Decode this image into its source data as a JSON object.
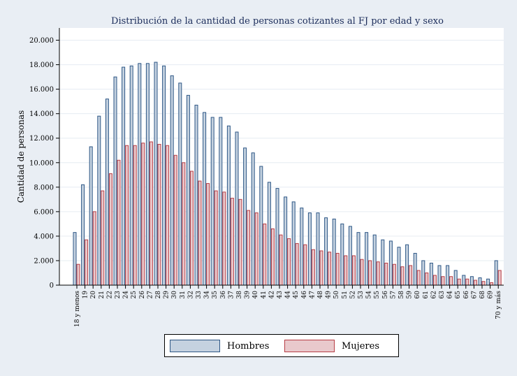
{
  "chart_data": {
    "type": "bar",
    "title": "Distribución de la cantidad de personas cotizantes al FJ por edad y sexo",
    "ylabel": "Cantidad de personas",
    "xlabel": "",
    "ylim": [
      0,
      21000
    ],
    "yticks": [
      "0",
      "2.000",
      "4.000",
      "6.000",
      "8.000",
      "10.000",
      "12.000",
      "14.000",
      "16.000",
      "18.000",
      "20.000"
    ],
    "ytick_values": [
      0,
      2000,
      4000,
      6000,
      8000,
      10000,
      12000,
      14000,
      16000,
      18000,
      20000
    ],
    "grid": true,
    "legend_position": "bottom",
    "categories": [
      "18 y menos",
      "19",
      "20",
      "21",
      "22",
      "23",
      "24",
      "25",
      "26",
      "27",
      "28",
      "29",
      "30",
      "31",
      "32",
      "33",
      "34",
      "35",
      "36",
      "37",
      "38",
      "39",
      "40",
      "41",
      "42",
      "43",
      "44",
      "45",
      "46",
      "47",
      "48",
      "49",
      "50",
      "51",
      "52",
      "53",
      "54",
      "55",
      "56",
      "57",
      "58",
      "59",
      "60",
      "61",
      "62",
      "63",
      "64",
      "65",
      "66",
      "67",
      "68",
      "69",
      "70 y más"
    ],
    "series": [
      {
        "name": "Hombres",
        "color": "#c5d2e0",
        "stroke": "#2e5786",
        "values": [
          4300,
          8200,
          11300,
          13800,
          15200,
          17000,
          17800,
          17900,
          18100,
          18100,
          18200,
          17900,
          17100,
          16500,
          15500,
          14700,
          14100,
          13700,
          13700,
          13000,
          12500,
          11200,
          10800,
          9700,
          8400,
          7900,
          7200,
          6800,
          6300,
          5900,
          5900,
          5500,
          5400,
          5000,
          4800,
          4300,
          4300,
          4100,
          3700,
          3600,
          3100,
          3300,
          2600,
          2000,
          1800,
          1600,
          1600,
          1200,
          800,
          700,
          600,
          500,
          2000
        ]
      },
      {
        "name": "Mujeres",
        "color": "#e9c9cc",
        "stroke": "#b73d45",
        "values": [
          1700,
          3700,
          6000,
          7700,
          9100,
          10200,
          11400,
          11400,
          11600,
          11700,
          11500,
          11400,
          10600,
          10000,
          9300,
          8500,
          8300,
          7700,
          7600,
          7100,
          7000,
          6100,
          5900,
          5000,
          4600,
          4100,
          3800,
          3400,
          3300,
          2900,
          2800,
          2700,
          2600,
          2400,
          2400,
          2100,
          2000,
          1900,
          1800,
          1700,
          1500,
          1600,
          1200,
          1000,
          800,
          700,
          700,
          500,
          500,
          400,
          300,
          200,
          1200
        ]
      }
    ]
  }
}
